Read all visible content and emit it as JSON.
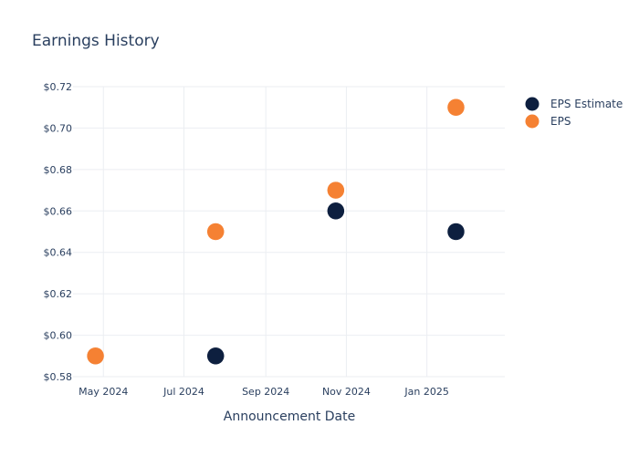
{
  "chart_data": {
    "type": "scatter",
    "title": "Earnings History",
    "xlabel": "Announcement Date",
    "ylabel": "",
    "x_ticks": [
      {
        "label": "May 2024",
        "date": "2024-05-01"
      },
      {
        "label": "Jul 2024",
        "date": "2024-07-01"
      },
      {
        "label": "Sep 2024",
        "date": "2024-09-01"
      },
      {
        "label": "Nov 2024",
        "date": "2024-11-01"
      },
      {
        "label": "Jan 2025",
        "date": "2025-01-01"
      }
    ],
    "xlim": [
      "2024-04-08",
      "2025-03-01"
    ],
    "y_ticks": [
      "$0.58",
      "$0.60",
      "$0.62",
      "$0.64",
      "$0.66",
      "$0.68",
      "$0.70",
      "$0.72"
    ],
    "y_tick_values": [
      0.58,
      0.6,
      0.62,
      0.64,
      0.66,
      0.68,
      0.7,
      0.72
    ],
    "ylim": [
      0.58,
      0.72
    ],
    "grid": true,
    "legend_position": "top-right",
    "series": [
      {
        "name": "EPS Estimate",
        "color": "#0d1f3f",
        "points": [
          {
            "date": "2024-04-25",
            "value": 0.59
          },
          {
            "date": "2024-07-25",
            "value": 0.59
          },
          {
            "date": "2024-10-24",
            "value": 0.66
          },
          {
            "date": "2025-01-23",
            "value": 0.65
          }
        ]
      },
      {
        "name": "EPS",
        "color": "#f58133",
        "points": [
          {
            "date": "2024-04-25",
            "value": 0.59
          },
          {
            "date": "2024-07-25",
            "value": 0.65
          },
          {
            "date": "2024-10-24",
            "value": 0.67
          },
          {
            "date": "2025-01-23",
            "value": 0.71
          }
        ]
      }
    ]
  }
}
